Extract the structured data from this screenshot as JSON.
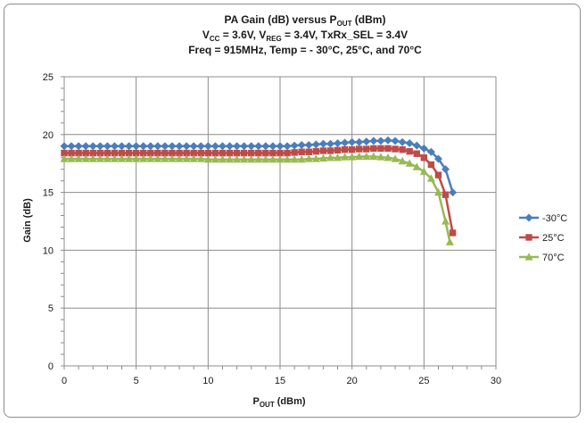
{
  "chart_data": {
    "type": "line",
    "title": {
      "line1": {
        "a": "PA Gain (dB) versus P",
        "a_sub": "OUT",
        "b": " (dBm)"
      },
      "line2": {
        "a": "V",
        "a_sub": "CC",
        "b": " = 3.6V, V",
        "b_sub": "REG",
        "c": " = 3.4V, TxRx_SEL = 3.4V"
      },
      "line3": "Freq = 915MHz, Temp = - 30°C, 25°C, and 70°C"
    },
    "xlabel": {
      "main": "P",
      "sub": "OUT",
      "suffix": " (dBm)"
    },
    "ylabel": "Gain (dB)",
    "xlim": [
      0,
      30
    ],
    "ylim": [
      0,
      25
    ],
    "x_ticks": [
      0,
      5,
      10,
      15,
      20,
      25,
      30
    ],
    "y_ticks": [
      0,
      5,
      10,
      15,
      20,
      25
    ],
    "grid": true,
    "legend_position": "right",
    "series": [
      {
        "name": "-30°C",
        "color": "#4a7ebb",
        "marker": "diamond",
        "x": [
          0,
          0.5,
          1,
          1.5,
          2,
          2.5,
          3,
          3.5,
          4,
          4.5,
          5,
          5.5,
          6,
          6.5,
          7,
          7.5,
          8,
          8.5,
          9,
          9.5,
          10,
          10.5,
          11,
          11.5,
          12,
          12.5,
          13,
          13.5,
          14,
          14.5,
          15,
          15.5,
          16,
          16.5,
          17,
          17.5,
          18,
          18.5,
          19,
          19.5,
          20,
          20.5,
          21,
          21.5,
          22,
          22.5,
          23,
          23.5,
          24,
          24.5,
          25,
          25.5,
          26,
          26.5,
          27
        ],
        "y": [
          19.0,
          19.0,
          19.0,
          19.0,
          19.0,
          19.0,
          19.0,
          19.0,
          19.0,
          19.0,
          19.0,
          19.0,
          19.0,
          19.0,
          19.0,
          19.0,
          19.0,
          19.0,
          19.0,
          19.0,
          19.0,
          19.0,
          19.0,
          19.0,
          19.0,
          19.0,
          19.0,
          19.0,
          19.0,
          19.0,
          19.0,
          19.0,
          19.05,
          19.1,
          19.1,
          19.15,
          19.2,
          19.2,
          19.25,
          19.3,
          19.35,
          19.35,
          19.4,
          19.45,
          19.45,
          19.5,
          19.45,
          19.35,
          19.25,
          19.05,
          18.8,
          18.5,
          17.9,
          17.0,
          15.0
        ]
      },
      {
        "name": "25°C",
        "color": "#be4b48",
        "marker": "square",
        "x": [
          0,
          0.5,
          1,
          1.5,
          2,
          2.5,
          3,
          3.5,
          4,
          4.5,
          5,
          5.5,
          6,
          6.5,
          7,
          7.5,
          8,
          8.5,
          9,
          9.5,
          10,
          10.5,
          11,
          11.5,
          12,
          12.5,
          13,
          13.5,
          14,
          14.5,
          15,
          15.5,
          16,
          16.5,
          17,
          17.5,
          18,
          18.5,
          19,
          19.5,
          20,
          20.5,
          21,
          21.5,
          22,
          22.5,
          23,
          23.5,
          24,
          24.5,
          25,
          25.5,
          26,
          26.5,
          27
        ],
        "y": [
          18.4,
          18.4,
          18.4,
          18.4,
          18.4,
          18.4,
          18.4,
          18.4,
          18.4,
          18.4,
          18.4,
          18.4,
          18.4,
          18.4,
          18.4,
          18.4,
          18.4,
          18.4,
          18.4,
          18.4,
          18.4,
          18.4,
          18.4,
          18.4,
          18.4,
          18.4,
          18.4,
          18.4,
          18.4,
          18.4,
          18.4,
          18.4,
          18.45,
          18.5,
          18.5,
          18.55,
          18.6,
          18.6,
          18.65,
          18.7,
          18.7,
          18.75,
          18.75,
          18.8,
          18.8,
          18.8,
          18.75,
          18.7,
          18.55,
          18.35,
          18.0,
          17.4,
          16.5,
          14.8,
          11.5
        ]
      },
      {
        "name": "70°C",
        "color": "#98b954",
        "marker": "triangle",
        "x": [
          0,
          0.5,
          1,
          1.5,
          2,
          2.5,
          3,
          3.5,
          4,
          4.5,
          5,
          5.5,
          6,
          6.5,
          7,
          7.5,
          8,
          8.5,
          9,
          9.5,
          10,
          10.5,
          11,
          11.5,
          12,
          12.5,
          13,
          13.5,
          14,
          14.5,
          15,
          15.5,
          16,
          16.5,
          17,
          17.5,
          18,
          18.5,
          19,
          19.5,
          20,
          20.5,
          21,
          21.5,
          22,
          22.5,
          23,
          23.5,
          24,
          24.5,
          25,
          25.5,
          26,
          26.5,
          26.8
        ],
        "y": [
          17.9,
          17.9,
          17.9,
          17.9,
          17.9,
          17.9,
          17.9,
          17.9,
          17.9,
          17.9,
          17.9,
          17.9,
          17.9,
          17.9,
          17.9,
          17.9,
          17.9,
          17.9,
          17.9,
          17.9,
          17.85,
          17.85,
          17.85,
          17.85,
          17.85,
          17.85,
          17.85,
          17.85,
          17.85,
          17.85,
          17.85,
          17.85,
          17.85,
          17.85,
          17.9,
          17.9,
          17.95,
          18.0,
          18.0,
          18.05,
          18.05,
          18.1,
          18.1,
          18.1,
          18.05,
          18.0,
          17.9,
          17.7,
          17.5,
          17.2,
          16.8,
          16.2,
          15.0,
          12.5,
          10.7
        ]
      }
    ]
  }
}
